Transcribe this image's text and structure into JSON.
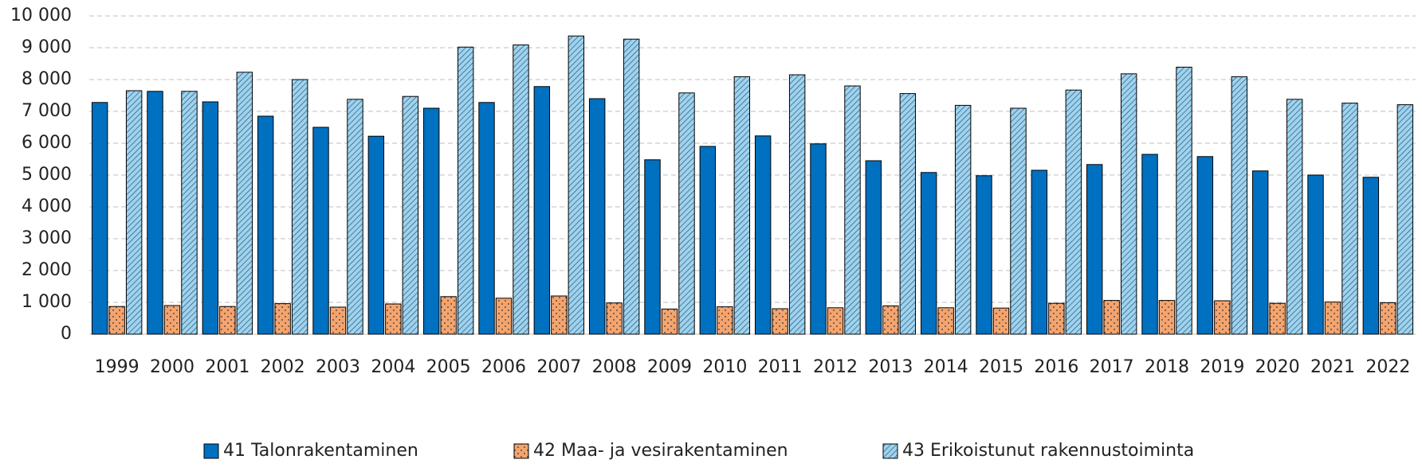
{
  "chart_data": {
    "type": "bar",
    "categories": [
      "1999",
      "2000",
      "2001",
      "2002",
      "2003",
      "2004",
      "2005",
      "2006",
      "2007",
      "2008",
      "2009",
      "2010",
      "2011",
      "2012",
      "2013",
      "2014",
      "2015",
      "2016",
      "2017",
      "2018",
      "2019",
      "2020",
      "2021",
      "2022"
    ],
    "series": [
      {
        "name": "41 Talonrakentaminen",
        "color": "#0070c0",
        "pattern": "solid",
        "values": [
          7280,
          7630,
          7300,
          6850,
          6500,
          6220,
          7100,
          7280,
          7780,
          7400,
          5480,
          5900,
          6230,
          5980,
          5450,
          5080,
          4980,
          5150,
          5330,
          5650,
          5580,
          5130,
          5000,
          4930
        ]
      },
      {
        "name": "42 Maa- ja vesirakentaminen",
        "color": "#f4a46e",
        "pattern": "dots",
        "values": [
          870,
          900,
          870,
          960,
          850,
          950,
          1180,
          1130,
          1200,
          980,
          790,
          860,
          800,
          830,
          890,
          830,
          820,
          970,
          1060,
          1060,
          1050,
          970,
          1010,
          990
        ]
      },
      {
        "name": "43 Erikoistunut rakennustoiminta",
        "color": "#9dd3ef",
        "pattern": "diagonal",
        "values": [
          7650,
          7630,
          8230,
          8000,
          7380,
          7470,
          9020,
          9090,
          9370,
          9270,
          7580,
          8090,
          8150,
          7800,
          7560,
          7190,
          7100,
          7670,
          8180,
          8390,
          8090,
          7380,
          7260,
          7210
        ]
      }
    ],
    "ylim": [
      0,
      10000
    ],
    "yticks": [
      0,
      {
        "value": 1000,
        "label": "1 000"
      },
      {
        "value": 2000,
        "label": "2 000"
      },
      {
        "value": 3000,
        "label": "3 000"
      },
      {
        "value": 4000,
        "label": "4 000"
      },
      {
        "value": 5000,
        "label": "5 000"
      },
      {
        "value": 6000,
        "label": "6 000"
      },
      {
        "value": 7000,
        "label": "7 000"
      },
      {
        "value": 8000,
        "label": "8 000"
      },
      {
        "value": 9000,
        "label": "9 000"
      },
      {
        "value": 10000,
        "label": "10 000"
      }
    ],
    "grid": true,
    "legend": "bottom"
  }
}
